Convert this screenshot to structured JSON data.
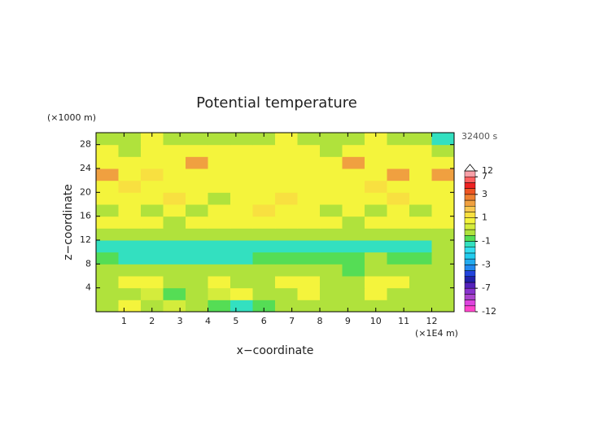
{
  "chart_data": {
    "type": "heatmap",
    "title": "Potential temperature",
    "y_unit": "(×1000 m)",
    "x_unit": "(×1E4 m)",
    "time_label": "32400 s",
    "xlabel": "x−coordinate",
    "ylabel": "z−coordinate",
    "xlim": [
      0,
      12.8
    ],
    "ylim": [
      0,
      30
    ],
    "xticks": [
      1,
      2,
      3,
      4,
      5,
      6,
      7,
      8,
      9,
      10,
      11,
      12
    ],
    "yticks": [
      4,
      8,
      12,
      16,
      20,
      24,
      28
    ],
    "levels": [
      -12,
      -10,
      -9,
      -8,
      -7,
      -6,
      -5,
      -4,
      -3,
      -2.5,
      -2,
      -1.5,
      -1,
      -0.5,
      0,
      0.5,
      1,
      1.5,
      2,
      2.5,
      3,
      4,
      5,
      7,
      12
    ],
    "colors": [
      "#ff44cc",
      "#dd44dd",
      "#aa44cc",
      "#8833cc",
      "#5522bb",
      "#2222aa",
      "#2244dd",
      "#2288ee",
      "#22aaee",
      "#22ccee",
      "#33ddee",
      "#33e0c0",
      "#55dd55",
      "#b0e23c",
      "#d4ec3c",
      "#f4f43c",
      "#f8e040",
      "#f8c850",
      "#f0a040",
      "#ee8030",
      "#ee5522",
      "#ee2222",
      "#ff6060",
      "#f8a0a8"
    ],
    "colorbar_ticks": [
      12,
      7,
      3,
      1,
      -1,
      -3,
      -7,
      -12
    ],
    "values": [
      [
        -0.3,
        0.6,
        -0.3,
        0.3,
        -0.2,
        -0.8,
        -1.2,
        -0.6,
        -0.4,
        -0.3,
        -0.2,
        -0.3,
        -0.2,
        -0.3,
        -0.2,
        -0.3
      ],
      [
        -0.2,
        -0.3,
        0.2,
        -0.6,
        -0.3,
        0.3,
        0.6,
        -0.2,
        -0.3,
        0.6,
        -0.2,
        -0.3,
        0.6,
        -0.3,
        -0.2,
        -0.3
      ],
      [
        -0.3,
        0.6,
        0.6,
        -0.2,
        -0.3,
        0.6,
        -0.3,
        -0.3,
        0.6,
        0.6,
        -0.2,
        -0.3,
        0.6,
        0.7,
        -0.3,
        -0.2
      ],
      [
        -0.3,
        -0.2,
        -0.3,
        -0.3,
        -0.2,
        -0.3,
        -0.3,
        -0.2,
        -0.3,
        -0.2,
        -0.3,
        -0.6,
        -0.3,
        -0.2,
        -0.3,
        -0.2
      ],
      [
        -0.6,
        -1.2,
        -1.2,
        -1.2,
        -1.2,
        -1.2,
        -1.1,
        -0.7,
        -0.6,
        -0.6,
        -0.6,
        -0.6,
        -0.3,
        -0.6,
        -0.6,
        -0.3
      ],
      [
        -1.2,
        -1.2,
        -1.2,
        -1.2,
        -1.2,
        -1.2,
        -1.1,
        -1.2,
        -1.2,
        -1.2,
        -1.2,
        -1.1,
        -1.2,
        -1.2,
        -1.2,
        -0.3
      ],
      [
        -0.3,
        -0.2,
        -0.3,
        -0.2,
        -0.3,
        -0.3,
        -0.2,
        -0.3,
        -0.3,
        -0.2,
        -0.3,
        -0.2,
        -0.3,
        -0.3,
        -0.2,
        -0.3
      ],
      [
        0.6,
        0.7,
        0.6,
        -0.2,
        0.6,
        0.7,
        0.6,
        0.6,
        0.7,
        0.6,
        0.6,
        -0.2,
        0.6,
        0.7,
        0.6,
        0.6
      ],
      [
        -0.3,
        0.6,
        -0.2,
        0.6,
        -0.3,
        0.6,
        0.7,
        1.2,
        0.6,
        0.6,
        -0.2,
        0.6,
        -0.3,
        0.6,
        -0.2,
        0.6
      ],
      [
        0.6,
        0.7,
        0.6,
        1.2,
        0.6,
        -0.2,
        0.6,
        0.7,
        1.2,
        0.6,
        0.6,
        0.7,
        0.6,
        1.2,
        0.6,
        0.7
      ],
      [
        0.7,
        1.2,
        0.6,
        0.7,
        0.6,
        0.7,
        0.6,
        0.6,
        0.7,
        0.6,
        0.6,
        0.7,
        1.2,
        0.6,
        0.7,
        0.6
      ],
      [
        2.2,
        0.7,
        1.2,
        0.6,
        0.7,
        0.6,
        0.6,
        0.7,
        0.6,
        0.7,
        0.6,
        0.7,
        0.6,
        2.2,
        0.7,
        2.2
      ],
      [
        0.6,
        0.7,
        0.6,
        0.7,
        2.2,
        0.6,
        0.7,
        0.6,
        0.7,
        0.6,
        0.7,
        2.2,
        0.6,
        0.7,
        0.6,
        0.7
      ],
      [
        0.6,
        -0.2,
        0.6,
        0.7,
        0.6,
        0.6,
        0.7,
        0.6,
        0.6,
        0.7,
        -0.2,
        0.6,
        0.7,
        0.6,
        0.6,
        -0.3
      ],
      [
        -0.3,
        -0.2,
        0.6,
        -0.3,
        -0.2,
        -0.3,
        -0.2,
        -0.3,
        0.6,
        -0.2,
        -0.3,
        -0.2,
        0.6,
        -0.3,
        -0.2,
        -1.2
      ]
    ]
  }
}
